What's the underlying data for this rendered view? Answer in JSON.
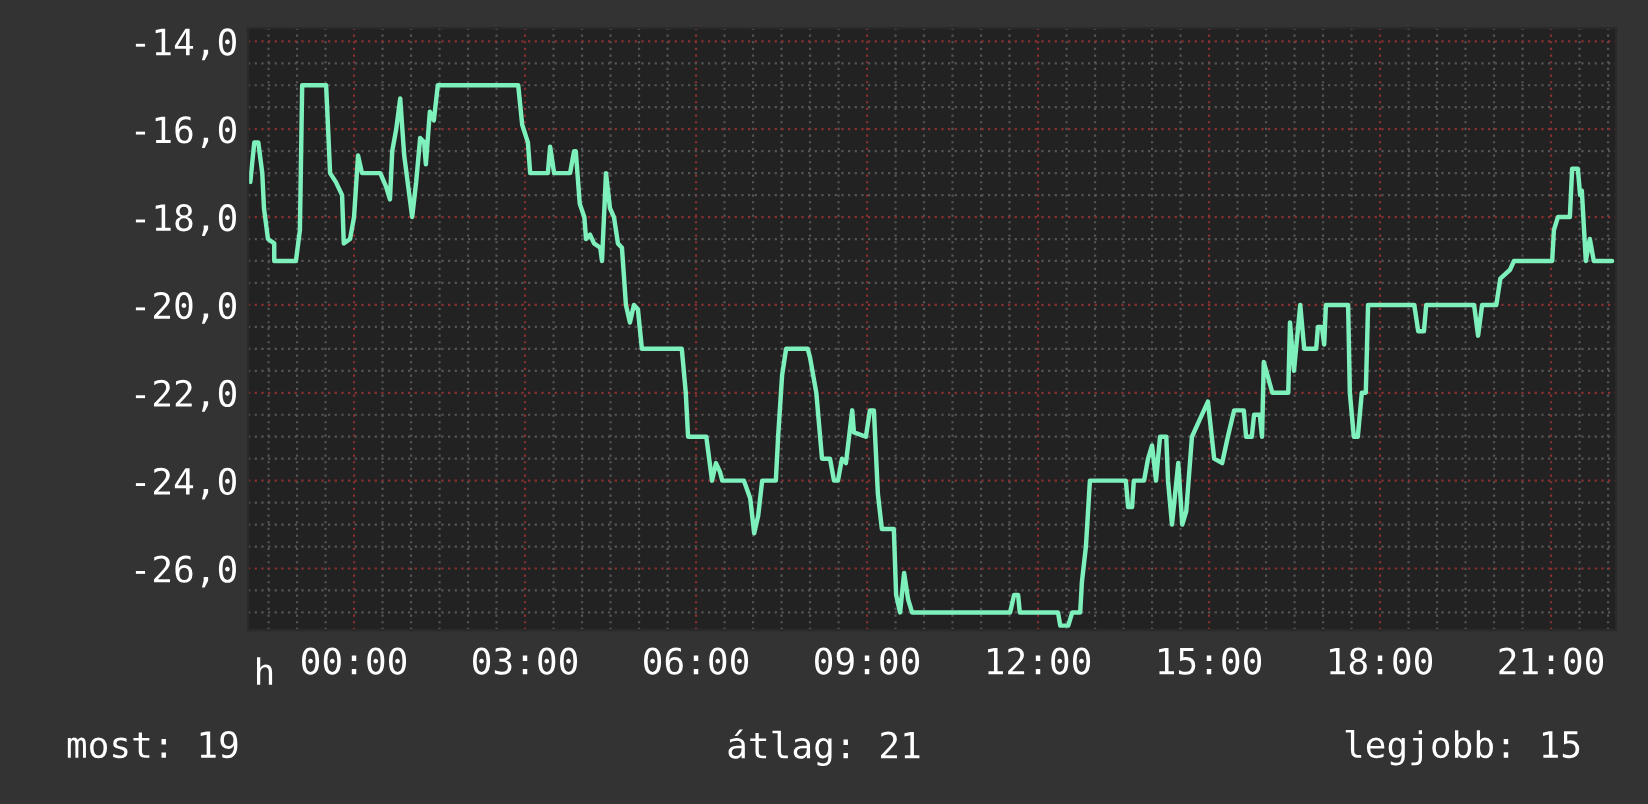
{
  "chart_data": {
    "type": "line",
    "x": [
      -1.82,
      -1.75,
      -1.68,
      -1.61,
      -1.58,
      -1.51,
      -1.4,
      -1.4,
      -1.02,
      -0.95,
      -0.91,
      -0.49,
      -0.42,
      -0.32,
      -0.21,
      -0.18,
      -0.07,
      0,
      0.07,
      0.14,
      0.46,
      0.56,
      0.63,
      0.67,
      0.74,
      0.81,
      0.88,
      0.95,
      1.02,
      1.09,
      1.16,
      1.23,
      1.26,
      1.33,
      1.4,
      1.47,
      2.88,
      2.95,
      3.05,
      3.09,
      3.4,
      3.44,
      3.51,
      3.79,
      3.86,
      3.89,
      3.96,
      4.04,
      4.07,
      4.14,
      4.21,
      4.32,
      4.35,
      4.42,
      4.49,
      4.56,
      4.63,
      4.7,
      4.77,
      4.84,
      4.91,
      4.98,
      5.05,
      5.75,
      5.82,
      5.86,
      6.18,
      6.21,
      6.28,
      6.35,
      6.42,
      6.46,
      6.84,
      6.95,
      7.02,
      7.09,
      7.16,
      7.4,
      7.44,
      7.51,
      7.58,
      7.96,
      8.0,
      8.11,
      8.21,
      8.35,
      8.42,
      8.49,
      8.56,
      8.63,
      8.74,
      8.77,
      8.98,
      9.05,
      9.12,
      9.19,
      9.26,
      9.47,
      9.51,
      9.58,
      9.65,
      9.72,
      9.79,
      11.51,
      11.58,
      11.65,
      11.68,
      12.35,
      12.39,
      12.53,
      12.6,
      12.74,
      12.77,
      12.84,
      12.91,
      13.54,
      13.58,
      13.65,
      13.68,
      13.86,
      13.93,
      14.0,
      14.07,
      14.14,
      14.25,
      14.28,
      14.35,
      14.46,
      14.53,
      14.6,
      14.7,
      14.84,
      14.98,
      15.09,
      15.23,
      15.33,
      15.44,
      15.61,
      15.65,
      15.75,
      15.79,
      15.89,
      15.93,
      15.96,
      16.11,
      16.39,
      16.42,
      16.49,
      16.6,
      16.67,
      16.88,
      16.91,
      16.98,
      17.02,
      17.05,
      17.44,
      17.47,
      17.54,
      17.61,
      17.68,
      17.75,
      17.79,
      18.6,
      18.67,
      18.77,
      18.81,
      19.65,
      19.72,
      19.79,
      20.04,
      20.11,
      20.28,
      20.35,
      21.02,
      21.05,
      21.12,
      21.33,
      21.37,
      21.47,
      21.51,
      21.54,
      21.61,
      21.68,
      21.75,
      22.07
    ],
    "series": [
      {
        "color": "#7df0bc",
        "values": [
          -17.2,
          -16.3,
          -16.3,
          -17.0,
          -17.8,
          -18.5,
          -18.6,
          -19.0,
          -19.0,
          -18.3,
          -15.0,
          -15.0,
          -17.0,
          -17.2,
          -17.5,
          -18.6,
          -18.5,
          -18.0,
          -16.6,
          -17.0,
          -17.0,
          -17.3,
          -17.6,
          -16.5,
          -16.0,
          -15.3,
          -16.6,
          -17.3,
          -18.0,
          -17.2,
          -16.2,
          -16.3,
          -16.8,
          -15.6,
          -15.8,
          -15.0,
          -15.0,
          -15.9,
          -16.3,
          -17.0,
          -17.0,
          -16.4,
          -17.0,
          -17.0,
          -16.5,
          -16.5,
          -17.7,
          -18.0,
          -18.5,
          -18.4,
          -18.6,
          -18.7,
          -19.0,
          -17.0,
          -17.8,
          -18.0,
          -18.6,
          -18.7,
          -20.0,
          -20.4,
          -20.0,
          -20.1,
          -21.0,
          -21.0,
          -22.0,
          -23.0,
          -23.0,
          -23.3,
          -24.0,
          -23.6,
          -23.8,
          -24.0,
          -24.0,
          -24.4,
          -25.2,
          -24.8,
          -24.0,
          -24.0,
          -23.0,
          -21.6,
          -21.0,
          -21.0,
          -21.2,
          -22.0,
          -23.5,
          -23.5,
          -24.0,
          -24.0,
          -23.5,
          -23.6,
          -22.4,
          -22.9,
          -23.0,
          -22.4,
          -22.4,
          -24.3,
          -25.1,
          -25.1,
          -26.6,
          -27.0,
          -26.1,
          -26.7,
          -27.0,
          -27.0,
          -26.6,
          -26.6,
          -27.0,
          -27.0,
          -27.3,
          -27.3,
          -27.0,
          -27.0,
          -26.3,
          -25.5,
          -24.0,
          -24.0,
          -24.6,
          -24.6,
          -24.0,
          -24.0,
          -23.5,
          -23.2,
          -24.0,
          -23.0,
          -23.0,
          -24.0,
          -25.0,
          -23.6,
          -25.0,
          -24.7,
          -23.0,
          -22.6,
          -22.2,
          -23.5,
          -23.6,
          -23.0,
          -22.4,
          -22.4,
          -23.0,
          -23.0,
          -22.5,
          -22.5,
          -23.0,
          -21.3,
          -22.0,
          -22.0,
          -20.4,
          -21.5,
          -20.0,
          -21.0,
          -21.0,
          -20.5,
          -20.5,
          -20.9,
          -20.0,
          -20.0,
          -22.0,
          -23.0,
          -23.0,
          -22.0,
          -22.0,
          -20.0,
          -20.0,
          -20.6,
          -20.6,
          -20.0,
          -20.0,
          -20.7,
          -20.0,
          -20.0,
          -19.4,
          -19.2,
          -19.0,
          -19.0,
          -18.3,
          -18.0,
          -18.0,
          -16.9,
          -16.9,
          -17.5,
          -17.4,
          -19.0,
          -18.5,
          -19.0,
          -19.0
        ]
      }
    ],
    "xlim": [
      -1.86,
      22.14
    ],
    "xticks": [
      {
        "value": 0,
        "label": "00:00"
      },
      {
        "value": 3,
        "label": "03:00"
      },
      {
        "value": 6,
        "label": "06:00"
      },
      {
        "value": 9,
        "label": "09:00"
      },
      {
        "value": 12,
        "label": "12:00"
      },
      {
        "value": 15,
        "label": "15:00"
      },
      {
        "value": 18,
        "label": "18:00"
      },
      {
        "value": 21,
        "label": "21:00"
      }
    ],
    "xlabel": "h",
    "ylim": [
      -27.4,
      -13.7
    ],
    "yticks": [
      {
        "value": -26,
        "label": "-26,0"
      },
      {
        "value": -24,
        "label": "-24,0"
      },
      {
        "value": -22,
        "label": "-22,0"
      },
      {
        "value": -20,
        "label": "-20,0"
      },
      {
        "value": -18,
        "label": "-18,0"
      },
      {
        "value": -16,
        "label": "-16,0"
      },
      {
        "value": -14,
        "label": "-14,0"
      }
    ],
    "grid": true,
    "annotations": [
      "most: 19",
      "átlag: 21",
      "legjobb: 15"
    ]
  }
}
